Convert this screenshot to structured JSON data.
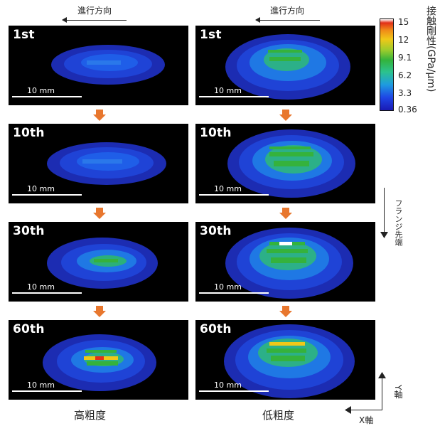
{
  "direction": {
    "label": "進行方向"
  },
  "panels": {
    "left": [
      {
        "label": "1st",
        "scale": "10 mm"
      },
      {
        "label": "10th",
        "scale": "10 mm"
      },
      {
        "label": "30th",
        "scale": "10 mm"
      },
      {
        "label": "60th",
        "scale": "10 mm"
      }
    ],
    "right": [
      {
        "label": "1st",
        "scale": "10 mm"
      },
      {
        "label": "10th",
        "scale": "10 mm"
      },
      {
        "label": "30th",
        "scale": "10 mm"
      },
      {
        "label": "60th",
        "scale": "10 mm"
      }
    ]
  },
  "captions": {
    "left": "高粗度",
    "right": "低粗度"
  },
  "colorbar": {
    "title": "接触剛性(GPa/μm)",
    "ticks": [
      "15",
      "12",
      "9.1",
      "6.2",
      "3.3",
      "0.36"
    ]
  },
  "flange": {
    "label": "フランジ先端"
  },
  "axes": {
    "y": "Y軸",
    "x": "X軸"
  },
  "colors": {
    "arrow": "#e8772e",
    "background": "#000000"
  }
}
